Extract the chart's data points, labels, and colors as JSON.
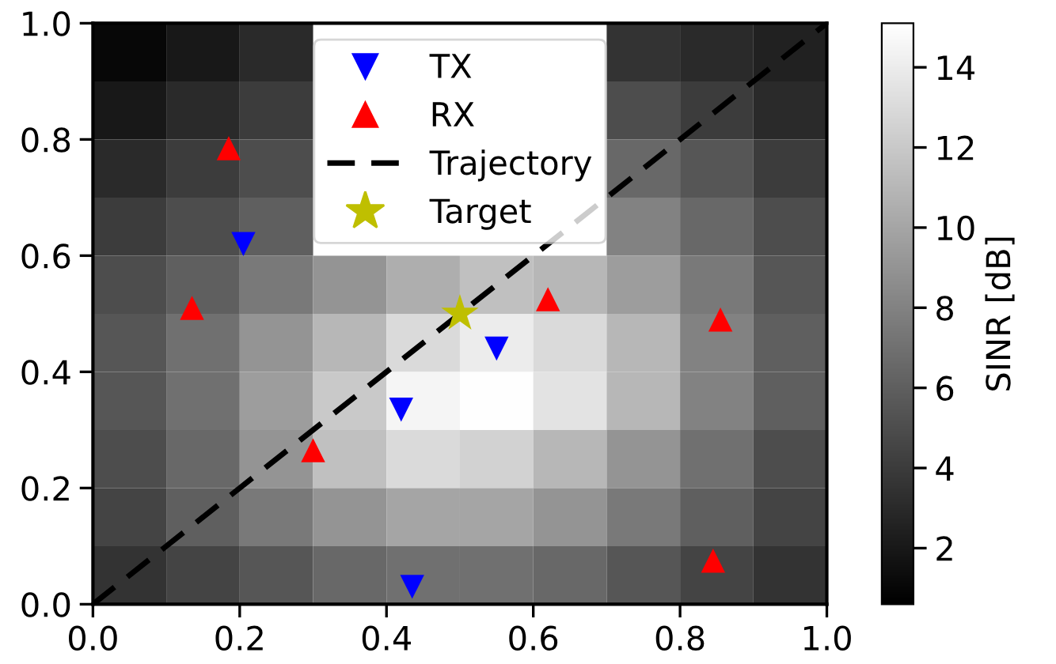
{
  "chart_data": {
    "type": "heatmap",
    "clabel": "SINR [dB]",
    "clim": [
      0.6,
      15.1
    ],
    "cticks": [
      2,
      4,
      6,
      8,
      10,
      12,
      14
    ],
    "xlim": [
      0,
      1
    ],
    "ylim": [
      0,
      1
    ],
    "xticks": [
      {
        "value": 0,
        "label": "0.0"
      },
      {
        "value": 0.2,
        "label": "0.2"
      },
      {
        "value": 0.4,
        "label": "0.4"
      },
      {
        "value": 0.6,
        "label": "0.6"
      },
      {
        "value": 0.8,
        "label": "0.8"
      },
      {
        "value": 1,
        "label": "1.0"
      }
    ],
    "yticks": [
      {
        "value": 0,
        "label": "0.0"
      },
      {
        "value": 0.2,
        "label": "0.2"
      },
      {
        "value": 0.4,
        "label": "0.4"
      },
      {
        "value": 0.6,
        "label": "0.6"
      },
      {
        "value": 0.8,
        "label": "0.8"
      },
      {
        "value": 1,
        "label": "1.0"
      }
    ],
    "cells": [
      [
        1,
        2,
        3,
        null,
        null,
        null,
        null,
        3.5,
        3,
        2.5
      ],
      [
        2,
        3,
        4,
        null,
        null,
        null,
        null,
        5,
        4,
        3
      ],
      [
        3,
        4,
        5,
        null,
        null,
        null,
        null,
        6.5,
        5.5,
        4
      ],
      [
        4,
        5,
        6,
        null,
        null,
        null,
        null,
        8,
        6.5,
        5
      ],
      [
        5,
        6,
        7.5,
        9,
        10.5,
        11.5,
        11,
        9.5,
        7.5,
        5.5
      ],
      [
        5.5,
        7,
        9,
        11,
        13,
        14,
        13,
        11,
        8,
        6
      ],
      [
        5.5,
        7,
        9.5,
        12,
        14.5,
        15,
        13.5,
        11,
        8,
        6
      ],
      [
        5,
        6.5,
        9,
        11.5,
        13,
        12.5,
        11,
        9,
        7,
        5
      ],
      [
        4.5,
        6,
        7.5,
        9,
        10,
        10,
        9,
        7.5,
        6,
        4.5
      ],
      [
        3.5,
        4.5,
        5.5,
        6.5,
        7,
        7,
        6.5,
        5.5,
        4.5,
        3.5
      ]
    ],
    "series": [
      {
        "name": "TX",
        "type": "scatter",
        "marker": "triangle_down",
        "color": "#0000ff",
        "x": [
          0.205,
          0.42,
          0.55,
          0.435
        ],
        "values": [
          0.62,
          0.335,
          0.44,
          0.03
        ]
      },
      {
        "name": "RX",
        "type": "scatter",
        "marker": "triangle",
        "color": "#ff0000",
        "x": [
          0.185,
          0.135,
          0.3,
          0.62,
          0.855,
          0.845
        ],
        "values": [
          0.785,
          0.51,
          0.265,
          0.525,
          0.49,
          0.075
        ]
      },
      {
        "name": "Trajectory",
        "type": "line",
        "line_style": "dashed",
        "color": "#000000",
        "x": [
          0,
          1
        ],
        "values": [
          0,
          1
        ]
      },
      {
        "name": "Target",
        "type": "scatter",
        "marker": "star",
        "color": "#bfbf00",
        "x": [
          0.5
        ],
        "values": [
          0.5
        ]
      }
    ],
    "legend": "top center",
    "grid": false
  }
}
